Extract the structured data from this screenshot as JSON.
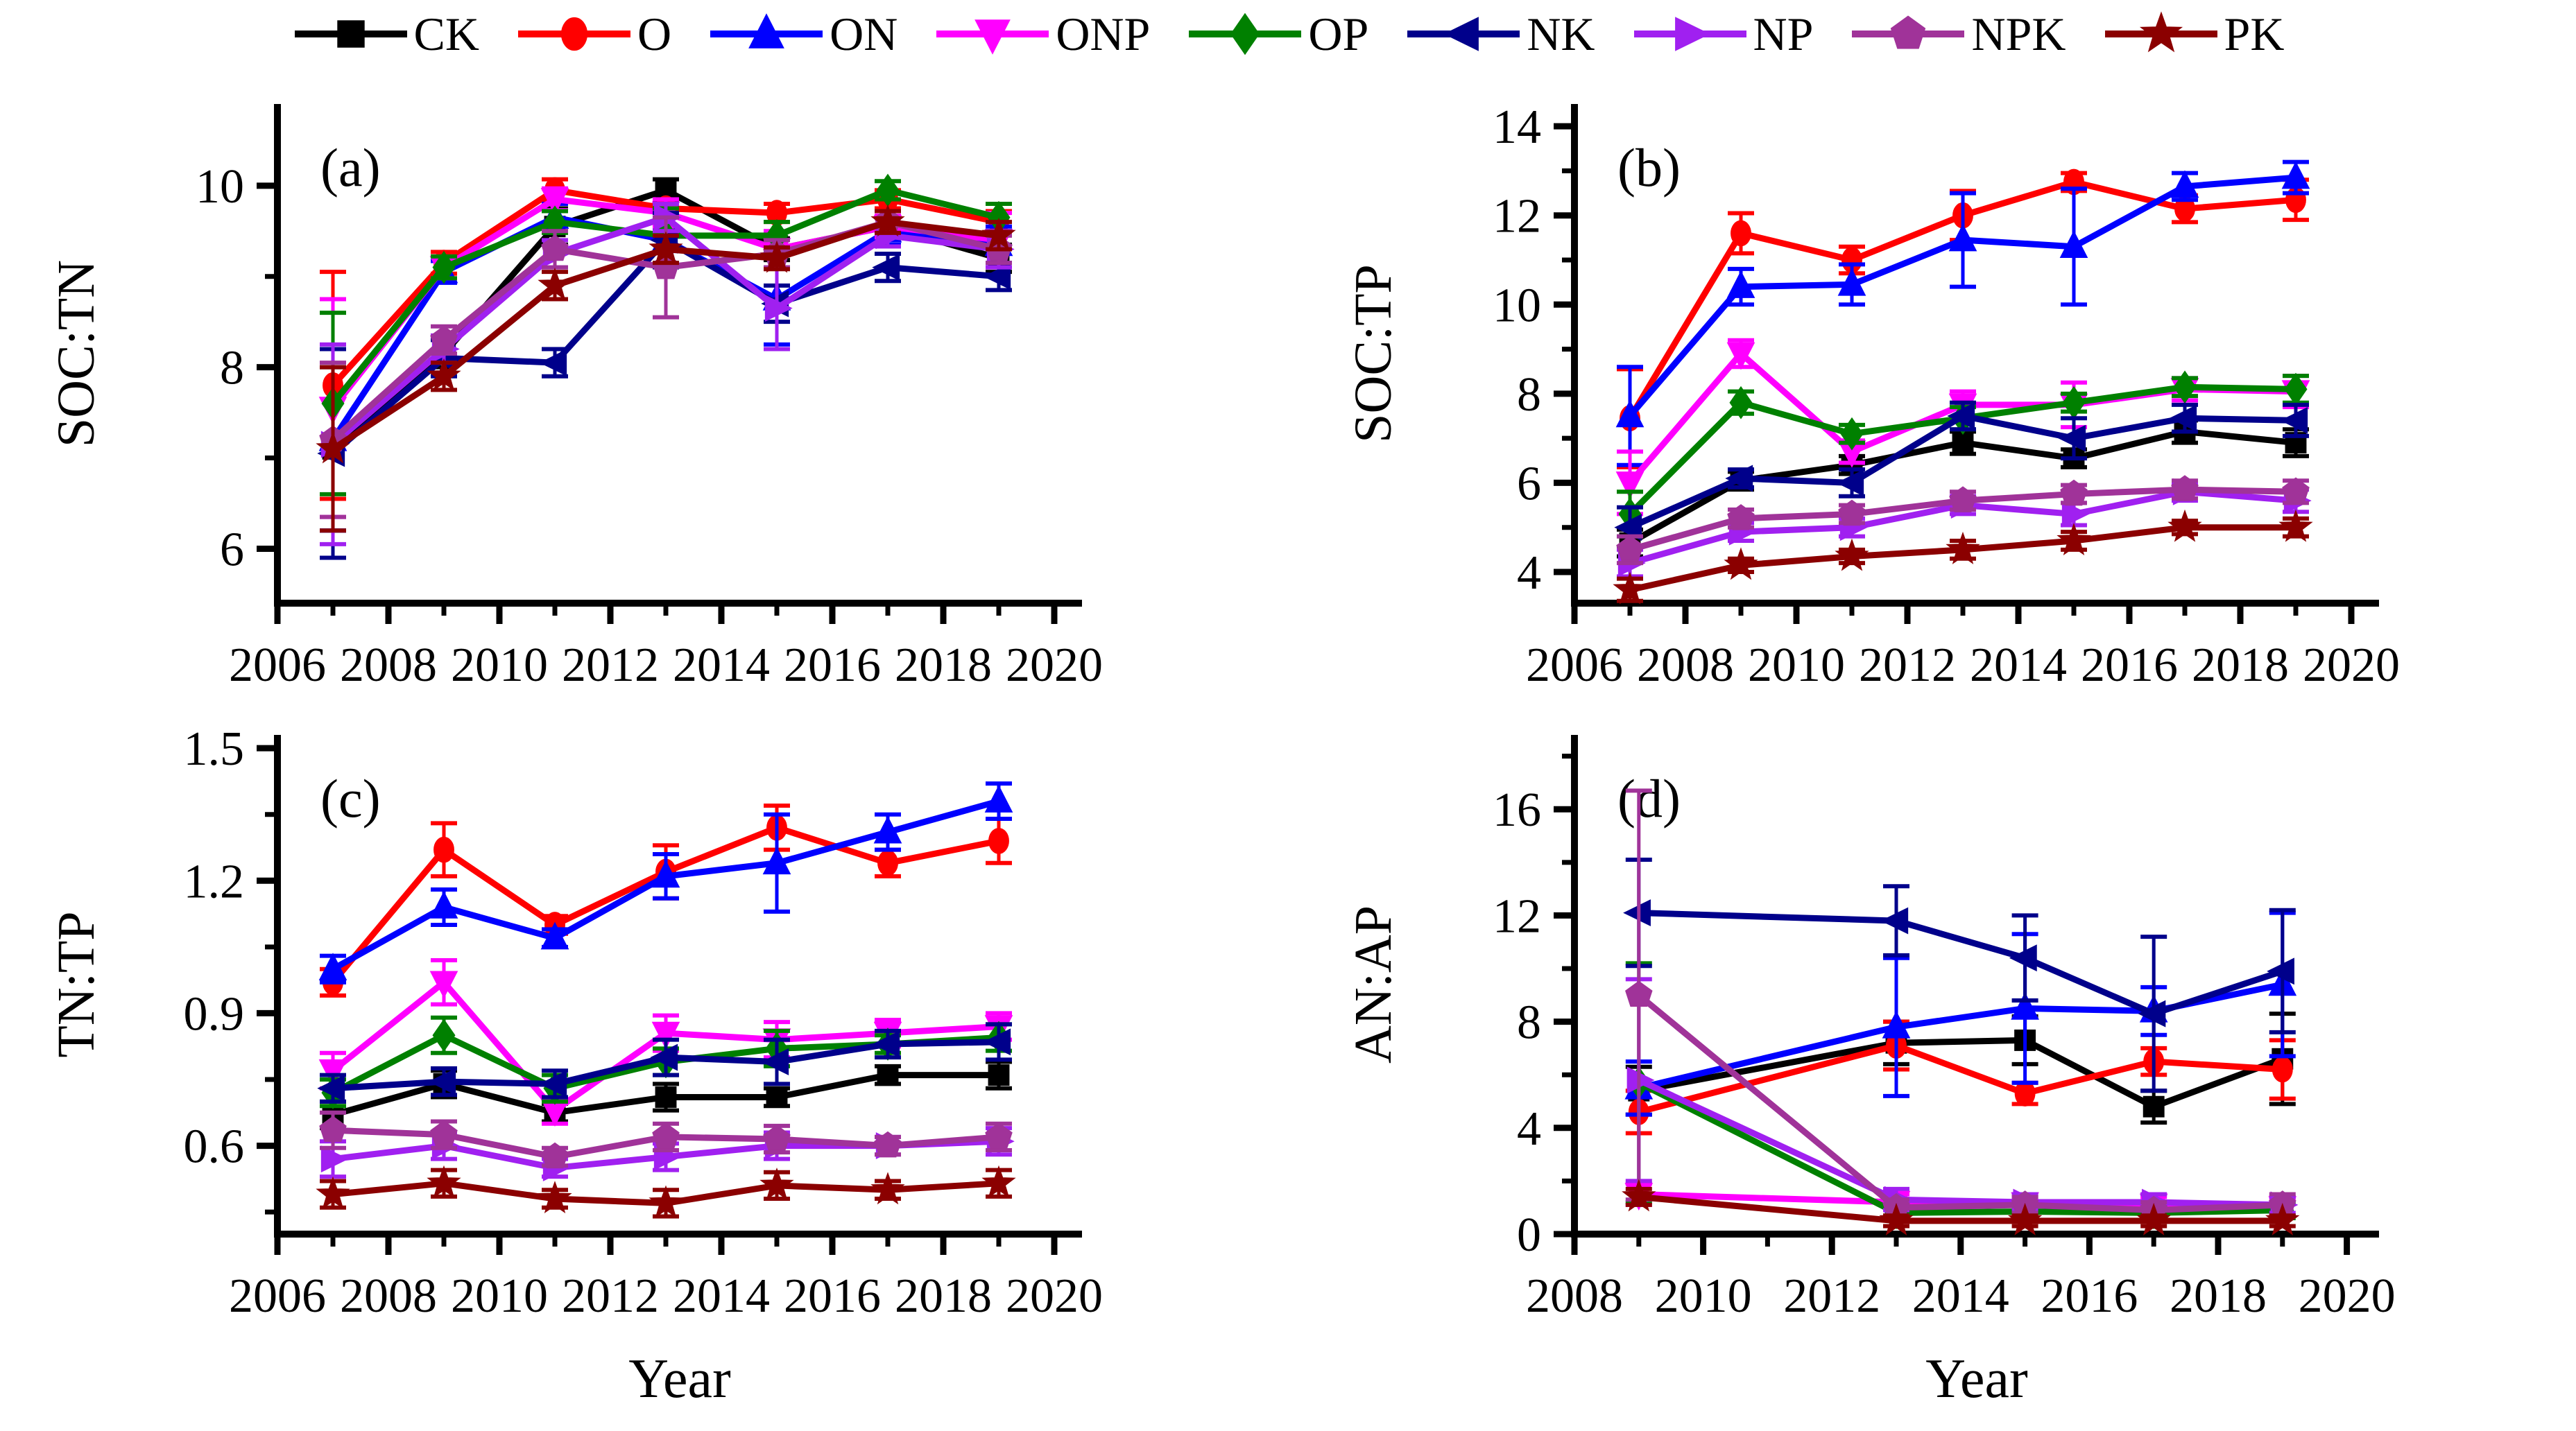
{
  "legend": {
    "items": [
      {
        "label": "CK",
        "color": "#000000",
        "marker": "square"
      },
      {
        "label": "O",
        "color": "#ff0000",
        "marker": "circle"
      },
      {
        "label": "ON",
        "color": "#0000ff",
        "marker": "triangle-up"
      },
      {
        "label": "ONP",
        "color": "#ff00ff",
        "marker": "triangle-down"
      },
      {
        "label": "OP",
        "color": "#008000",
        "marker": "diamond"
      },
      {
        "label": "NK",
        "color": "#00008b",
        "marker": "triangle-left"
      },
      {
        "label": "NP",
        "color": "#a020f0",
        "marker": "triangle-right"
      },
      {
        "label": "NPK",
        "color": "#a03399",
        "marker": "pentagon"
      },
      {
        "label": "PK",
        "color": "#8b0000",
        "marker": "star"
      }
    ]
  },
  "chart_data": [
    {
      "id": "a",
      "type": "line",
      "panel_label": "(a)",
      "ylabel": "SOC:TN",
      "xlabel": "",
      "x": [
        2007,
        2009,
        2011,
        2013,
        2015,
        2017,
        2019
      ],
      "xlim": [
        2006,
        2020.5
      ],
      "xticks": [
        2006,
        2008,
        2010,
        2012,
        2014,
        2016,
        2018,
        2020
      ],
      "xminor": [
        2007,
        2009,
        2011,
        2013,
        2015,
        2017,
        2019
      ],
      "ylim": [
        5.4,
        10.9
      ],
      "yticks": [
        6,
        8,
        10
      ],
      "yticklabels": [
        "6",
        "8",
        "10"
      ],
      "yminor": [
        7,
        9
      ],
      "series": [
        {
          "name": "CK",
          "values": [
            7.1,
            8.15,
            9.55,
            9.95,
            9.3,
            9.55,
            9.2
          ],
          "err": [
            0.9,
            0.15,
            0.2,
            0.12,
            0.12,
            0.12,
            0.15
          ]
        },
        {
          "name": "O",
          "values": [
            7.8,
            9.15,
            9.95,
            9.75,
            9.7,
            9.85,
            9.6
          ],
          "err": [
            1.25,
            0.12,
            0.12,
            0.1,
            0.1,
            0.1,
            0.12
          ]
        },
        {
          "name": "ON",
          "values": [
            7.2,
            9.05,
            9.65,
            9.4,
            8.75,
            9.5,
            9.35
          ],
          "err": [
            1.0,
            0.12,
            0.15,
            0.12,
            0.5,
            0.15,
            0.2
          ]
        },
        {
          "name": "ONP",
          "values": [
            7.55,
            9.1,
            9.85,
            9.7,
            9.3,
            9.55,
            9.4
          ],
          "err": [
            1.2,
            0.12,
            0.12,
            0.15,
            0.2,
            0.12,
            0.3
          ]
        },
        {
          "name": "OP",
          "values": [
            7.6,
            9.1,
            9.6,
            9.45,
            9.45,
            9.95,
            9.65
          ],
          "err": [
            1.0,
            0.12,
            0.12,
            0.3,
            0.15,
            0.1,
            0.15
          ]
        },
        {
          "name": "NK",
          "values": [
            7.05,
            8.1,
            8.05,
            9.4,
            8.7,
            9.1,
            9.0
          ],
          "err": [
            1.15,
            0.2,
            0.15,
            0.3,
            0.2,
            0.15,
            0.15
          ]
        },
        {
          "name": "NP",
          "values": [
            7.15,
            8.2,
            9.25,
            9.65,
            8.65,
            9.45,
            9.3
          ],
          "err": [
            1.1,
            0.15,
            0.15,
            0.15,
            0.45,
            0.12,
            0.2
          ]
        },
        {
          "name": "NPK",
          "values": [
            7.2,
            8.3,
            9.3,
            9.1,
            9.25,
            9.6,
            9.3
          ],
          "err": [
            0.85,
            0.15,
            0.2,
            0.55,
            0.15,
            0.12,
            0.15
          ]
        },
        {
          "name": "PK",
          "values": [
            7.1,
            7.9,
            8.9,
            9.3,
            9.2,
            9.6,
            9.45
          ],
          "err": [
            0.9,
            0.15,
            0.15,
            0.15,
            0.12,
            0.12,
            0.15
          ]
        }
      ]
    },
    {
      "id": "b",
      "type": "line",
      "panel_label": "(b)",
      "ylabel": "SOC:TP",
      "xlabel": "",
      "x": [
        2007,
        2009,
        2011,
        2013,
        2015,
        2017,
        2019
      ],
      "xlim": [
        2006,
        2020.5
      ],
      "xticks": [
        2006,
        2008,
        2010,
        2012,
        2014,
        2016,
        2018,
        2020
      ],
      "xminor": [
        2007,
        2009,
        2011,
        2013,
        2015,
        2017,
        2019
      ],
      "ylim": [
        3.3,
        14.5
      ],
      "yticks": [
        4,
        6,
        8,
        10,
        12,
        14
      ],
      "yticklabels": [
        "4",
        "6",
        "8",
        "10",
        "12",
        "14"
      ],
      "yminor": [
        5,
        7,
        9,
        11,
        13
      ],
      "series": [
        {
          "name": "CK",
          "values": [
            4.65,
            6.05,
            6.4,
            6.9,
            6.55,
            7.15,
            6.9
          ],
          "err": [
            0.3,
            0.2,
            0.2,
            0.25,
            0.2,
            0.25,
            0.3
          ]
        },
        {
          "name": "O",
          "values": [
            7.45,
            11.6,
            11.0,
            12.0,
            12.75,
            12.15,
            12.35
          ],
          "err": [
            1.1,
            0.45,
            0.3,
            0.55,
            0.2,
            0.3,
            0.45
          ]
        },
        {
          "name": "ON",
          "values": [
            7.5,
            10.4,
            10.45,
            11.45,
            11.3,
            12.65,
            12.85
          ],
          "err": [
            1.1,
            0.4,
            0.45,
            1.05,
            1.3,
            0.3,
            0.35
          ]
        },
        {
          "name": "ONP",
          "values": [
            6.0,
            8.9,
            6.7,
            7.75,
            7.75,
            8.1,
            8.05
          ],
          "err": [
            0.7,
            0.3,
            0.25,
            0.3,
            0.5,
            0.25,
            0.35
          ]
        },
        {
          "name": "OP",
          "values": [
            5.3,
            7.8,
            7.1,
            7.45,
            7.8,
            8.15,
            8.1
          ],
          "err": [
            0.5,
            0.25,
            0.2,
            0.25,
            0.2,
            0.2,
            0.3
          ]
        },
        {
          "name": "NK",
          "values": [
            5.0,
            6.1,
            6.0,
            7.5,
            7.0,
            7.45,
            7.4
          ],
          "err": [
            0.45,
            0.2,
            0.3,
            0.3,
            0.45,
            0.3,
            0.35
          ]
        },
        {
          "name": "NP",
          "values": [
            4.2,
            4.9,
            5.0,
            5.5,
            5.3,
            5.8,
            5.6
          ],
          "err": [
            0.3,
            0.2,
            0.2,
            0.2,
            0.25,
            0.2,
            0.25
          ]
        },
        {
          "name": "NPK",
          "values": [
            4.5,
            5.2,
            5.3,
            5.6,
            5.75,
            5.85,
            5.8
          ],
          "err": [
            0.3,
            0.2,
            0.2,
            0.2,
            0.2,
            0.2,
            0.25
          ]
        },
        {
          "name": "PK",
          "values": [
            3.6,
            4.15,
            4.35,
            4.5,
            4.7,
            5.0,
            5.0
          ],
          "err": [
            0.25,
            0.15,
            0.15,
            0.2,
            0.2,
            0.15,
            0.2
          ]
        }
      ]
    },
    {
      "id": "c",
      "type": "line",
      "panel_label": "(c)",
      "ylabel": "TN:TP",
      "xlabel": "Year",
      "x": [
        2007,
        2009,
        2011,
        2013,
        2015,
        2017,
        2019
      ],
      "xlim": [
        2006,
        2020.5
      ],
      "xticks": [
        2006,
        2008,
        2010,
        2012,
        2014,
        2016,
        2018,
        2020
      ],
      "xminor": [
        2007,
        2009,
        2011,
        2013,
        2015,
        2017,
        2019
      ],
      "ylim": [
        0.4,
        1.53
      ],
      "yticks": [
        0.6,
        0.9,
        1.2,
        1.5
      ],
      "yticklabels": [
        "0.6",
        "0.9",
        "1.2",
        "1.5"
      ],
      "yminor": [
        0.45,
        0.75,
        1.05,
        1.35
      ],
      "series": [
        {
          "name": "CK",
          "values": [
            0.67,
            0.74,
            0.675,
            0.71,
            0.71,
            0.76,
            0.76
          ],
          "err": [
            0.03,
            0.03,
            0.02,
            0.03,
            0.02,
            0.02,
            0.03
          ]
        },
        {
          "name": "O",
          "values": [
            0.97,
            1.27,
            1.1,
            1.22,
            1.32,
            1.24,
            1.29
          ],
          "err": [
            0.03,
            0.06,
            0.02,
            0.06,
            0.05,
            0.03,
            0.05
          ]
        },
        {
          "name": "ON",
          "values": [
            1.0,
            1.14,
            1.07,
            1.21,
            1.24,
            1.31,
            1.38
          ],
          "err": [
            0.03,
            0.04,
            0.02,
            0.05,
            0.11,
            0.04,
            0.04
          ]
        },
        {
          "name": "ONP",
          "values": [
            0.77,
            0.97,
            0.68,
            0.855,
            0.84,
            0.855,
            0.87
          ],
          "err": [
            0.04,
            0.05,
            0.03,
            0.04,
            0.04,
            0.03,
            0.03
          ]
        },
        {
          "name": "OP",
          "values": [
            0.72,
            0.85,
            0.73,
            0.79,
            0.82,
            0.83,
            0.845
          ],
          "err": [
            0.03,
            0.04,
            0.03,
            0.03,
            0.04,
            0.02,
            0.03
          ]
        },
        {
          "name": "NK",
          "values": [
            0.73,
            0.745,
            0.74,
            0.8,
            0.79,
            0.83,
            0.835
          ],
          "err": [
            0.03,
            0.03,
            0.03,
            0.04,
            0.05,
            0.03,
            0.04
          ]
        },
        {
          "name": "NP",
          "values": [
            0.57,
            0.6,
            0.55,
            0.575,
            0.6,
            0.6,
            0.61
          ],
          "err": [
            0.04,
            0.03,
            0.02,
            0.03,
            0.03,
            0.02,
            0.03
          ]
        },
        {
          "name": "NPK",
          "values": [
            0.635,
            0.625,
            0.575,
            0.62,
            0.615,
            0.6,
            0.62
          ],
          "err": [
            0.04,
            0.03,
            0.02,
            0.03,
            0.03,
            0.02,
            0.03
          ]
        },
        {
          "name": "PK",
          "values": [
            0.49,
            0.515,
            0.48,
            0.47,
            0.51,
            0.5,
            0.515
          ],
          "err": [
            0.03,
            0.03,
            0.02,
            0.03,
            0.03,
            0.02,
            0.03
          ]
        }
      ]
    },
    {
      "id": "d",
      "type": "line",
      "panel_label": "(d)",
      "ylabel": "AN:AP",
      "xlabel": "Year",
      "x": [
        2009,
        2013,
        2015,
        2017,
        2019
      ],
      "xlim": [
        2008,
        2020.5
      ],
      "xticks": [
        2008,
        2010,
        2012,
        2014,
        2016,
        2018,
        2020
      ],
      "xminor": [
        2009,
        2011,
        2013,
        2015,
        2017,
        2019
      ],
      "ylim": [
        0,
        18.8
      ],
      "yticks": [
        0,
        4,
        8,
        12,
        16
      ],
      "yticklabels": [
        "0",
        "4",
        "8",
        "12",
        "16"
      ],
      "yminor": [
        2,
        6,
        10,
        14,
        18
      ],
      "series": [
        {
          "name": "CK",
          "values": [
            5.4,
            7.2,
            7.3,
            4.8,
            6.6
          ],
          "err": [
            0.9,
            0.8,
            0.9,
            0.6,
            1.7
          ]
        },
        {
          "name": "O",
          "values": [
            4.6,
            7.1,
            5.3,
            6.5,
            6.2
          ],
          "err": [
            0.8,
            0.9,
            0.4,
            0.5,
            1.1
          ]
        },
        {
          "name": "ON",
          "values": [
            5.5,
            7.8,
            8.5,
            8.4,
            9.4
          ],
          "err": [
            1.0,
            2.6,
            2.8,
            0.9,
            2.7
          ]
        },
        {
          "name": "ONP",
          "values": [
            1.5,
            1.2,
            1.15,
            1.1,
            1.0
          ],
          "err": [
            0.4,
            0.3,
            0.2,
            0.3,
            0.3
          ]
        },
        {
          "name": "OP",
          "values": [
            5.7,
            0.8,
            0.85,
            0.8,
            0.9
          ],
          "err": [
            4.5,
            0.2,
            0.2,
            0.2,
            0.3
          ]
        },
        {
          "name": "NK",
          "values": [
            12.1,
            11.8,
            10.4,
            8.3,
            9.9
          ],
          "err": [
            2.0,
            1.3,
            1.6,
            2.9,
            2.3
          ]
        },
        {
          "name": "NP",
          "values": [
            5.8,
            1.3,
            1.2,
            1.2,
            1.1
          ],
          "err": [
            3.8,
            0.4,
            0.3,
            0.3,
            0.3
          ]
        },
        {
          "name": "NPK",
          "values": [
            9.0,
            1.0,
            1.1,
            0.9,
            1.1
          ],
          "err": [
            7.7,
            0.3,
            0.3,
            0.3,
            0.4
          ]
        },
        {
          "name": "PK",
          "values": [
            1.4,
            0.5,
            0.5,
            0.5,
            0.5
          ],
          "err": [
            0.3,
            0.2,
            0.2,
            0.2,
            0.2
          ]
        }
      ]
    }
  ]
}
